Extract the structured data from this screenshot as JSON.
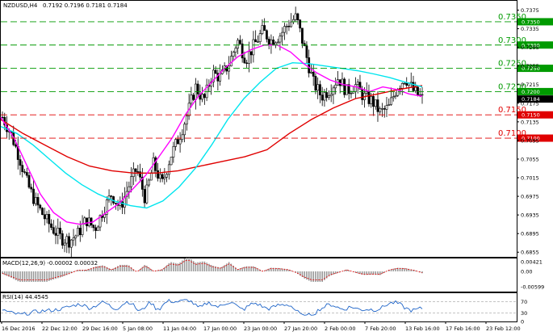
{
  "header": {
    "symbol": "NZDUSD,H4",
    "ohlc": "0.7192 0.7196 0.7181 0.7184"
  },
  "indicators": {
    "macd_label": "MACD(12,26,9) -0.00002 0.00032",
    "rsi_label": "RSI(14) 44.4545"
  },
  "colors": {
    "sma_fast": "#ff00ff",
    "sma_mid": "#00e5ee",
    "sma_slow": "#e00000",
    "support": "#e00000",
    "resistance": "#009a00",
    "current_price": "#000000",
    "macd_signal": "#e00000",
    "rsi_line": "#1e64c8"
  },
  "chart_data": {
    "type": "candlestick",
    "price_axis": {
      "ticks": [
        "0.7375",
        "0.7335",
        "0.7295",
        "0.7255",
        "0.7215",
        "0.7175",
        "0.7135",
        "0.7095",
        "0.7055",
        "0.7015",
        "0.6975",
        "0.6935",
        "0.6895",
        "0.6855"
      ],
      "ylim": [
        0.6845,
        0.7395
      ]
    },
    "time_axis": {
      "labels": [
        "16 Dec 2016",
        "22 Dec 12:00",
        "29 Dec 16:00",
        "5 Jan 08:00",
        "11 Jan 04:00",
        "17 Jan 00:00",
        "23 Jan 00:00",
        "27 Jan 20:00",
        "2 Feb 00:00",
        "7 Feb 20:00",
        "13 Feb 16:00",
        "17 Feb 16:00",
        "23 Feb 12:00"
      ]
    },
    "current_price": "0.7184",
    "resistance_levels": [
      {
        "label": "0.7350",
        "value": 0.735
      },
      {
        "label": "0.7300",
        "value": 0.73
      },
      {
        "label": "0.7250",
        "value": 0.725
      },
      {
        "label": "0.7200",
        "value": 0.72
      }
    ],
    "support_levels": [
      {
        "label": "0.7150",
        "value": 0.715
      },
      {
        "label": "0.7100",
        "value": 0.71
      }
    ],
    "price_path": [
      0.7145,
      0.711,
      0.706,
      0.7,
      0.696,
      0.693,
      0.6905,
      0.6885,
      0.688,
      0.6895,
      0.6925,
      0.6905,
      0.6945,
      0.698,
      0.695,
      0.6995,
      0.7035,
      0.697,
      0.7045,
      0.7,
      0.706,
      0.71,
      0.715,
      0.721,
      0.718,
      0.724,
      0.723,
      0.726,
      0.731,
      0.727,
      0.73,
      0.733,
      0.731,
      0.732,
      0.7345,
      0.736,
      0.729,
      0.722,
      0.719,
      0.7205,
      0.723,
      0.72,
      0.7215,
      0.719,
      0.718,
      0.7155,
      0.7165,
      0.721,
      0.723,
      0.72,
      0.7185
    ],
    "sma_fast": [
      0.7145,
      0.71,
      0.704,
      0.698,
      0.694,
      0.692,
      0.6915,
      0.692,
      0.694,
      0.696,
      0.699,
      0.702,
      0.706,
      0.71,
      0.715,
      0.719,
      0.722,
      0.725,
      0.7275,
      0.729,
      0.73,
      0.73,
      0.7285,
      0.726,
      0.724,
      0.7225,
      0.7215,
      0.721,
      0.72,
      0.721,
      0.7205,
      0.7195,
      0.719
    ],
    "sma_mid": [
      0.7125,
      0.711,
      0.7085,
      0.7055,
      0.7025,
      0.7,
      0.698,
      0.6965,
      0.6955,
      0.695,
      0.6965,
      0.6995,
      0.7035,
      0.7085,
      0.714,
      0.7185,
      0.722,
      0.725,
      0.7262,
      0.726,
      0.7255,
      0.725,
      0.7245,
      0.7238,
      0.723,
      0.722,
      0.721
    ],
    "sma_slow": [
      0.714,
      0.711,
      0.7085,
      0.706,
      0.704,
      0.703,
      0.7025,
      0.7025,
      0.703,
      0.704,
      0.705,
      0.706,
      0.7075,
      0.711,
      0.714,
      0.7165,
      0.7185,
      0.7195,
      0.7205,
      0.7213
    ],
    "macd": {
      "ticks": [
        "0.00421",
        "0.00",
        "-0.00599"
      ]
    },
    "rsi": {
      "ticks": [
        "70",
        "30",
        "0"
      ]
    }
  }
}
